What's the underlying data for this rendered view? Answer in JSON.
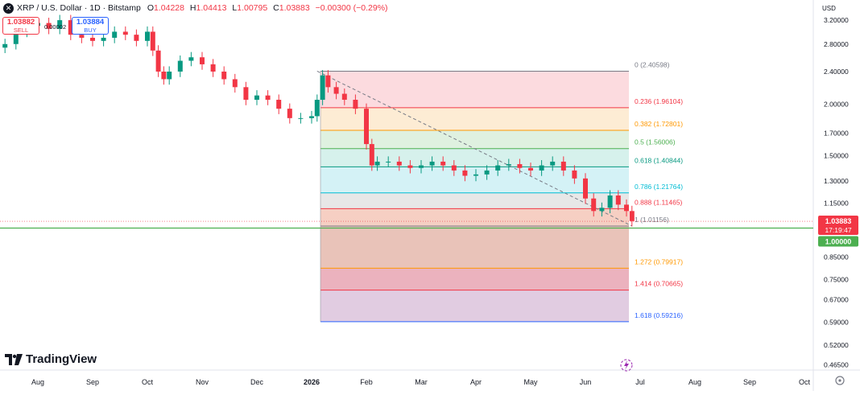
{
  "header": {
    "title": "XRP / U.S. Dollar · 1D · Bitstamp",
    "ohlc": [
      {
        "k": "O",
        "v": "1.04228"
      },
      {
        "k": "H",
        "v": "1.04413"
      },
      {
        "k": "L",
        "v": "1.00795"
      },
      {
        "k": "C",
        "v": "1.03883"
      }
    ],
    "change": "−0.00300 (−0.29%)",
    "symbol_icon": "x-icon"
  },
  "trade": {
    "sell_price": "1.03882",
    "sell_label": "SELL",
    "buy_price": "1.03884",
    "buy_label": "BUY",
    "spread": "0.00002"
  },
  "currency_label": "USD",
  "logo_text": "TradingView",
  "price_axis": {
    "ticks": [
      {
        "label": "3.20000",
        "v": 3.2
      },
      {
        "label": "2.80000",
        "v": 2.8
      },
      {
        "label": "2.40000",
        "v": 2.4
      },
      {
        "label": "2.00000",
        "v": 2.0
      },
      {
        "label": "1.70000",
        "v": 1.7
      },
      {
        "label": "1.50000",
        "v": 1.5
      },
      {
        "label": "1.30000",
        "v": 1.3
      },
      {
        "label": "1.15000",
        "v": 1.15
      },
      {
        "label": "0.85000",
        "v": 0.85
      },
      {
        "label": "0.75000",
        "v": 0.75
      },
      {
        "label": "0.67000",
        "v": 0.67
      },
      {
        "label": "0.59000",
        "v": 0.59
      },
      {
        "label": "0.52000",
        "v": 0.52
      },
      {
        "label": "0.46500",
        "v": 0.465
      }
    ],
    "last_price": "1.03883",
    "countdown": "17:19:47",
    "last_value": 1.03883,
    "level_label": "1.00000",
    "level_value": 1.0
  },
  "time_axis": {
    "labels": [
      {
        "label": "Aug",
        "t": 0
      },
      {
        "label": "Sep",
        "t": 1
      },
      {
        "label": "Oct",
        "t": 2
      },
      {
        "label": "Nov",
        "t": 3
      },
      {
        "label": "Dec",
        "t": 4
      },
      {
        "label": "2026",
        "t": 5
      },
      {
        "label": "Feb",
        "t": 6
      },
      {
        "label": "Mar",
        "t": 7
      },
      {
        "label": "Apr",
        "t": 8
      },
      {
        "label": "May",
        "t": 9
      },
      {
        "label": "Jun",
        "t": 10
      },
      {
        "label": "Jul",
        "t": 11
      },
      {
        "label": "Aug",
        "t": 12
      },
      {
        "label": "Sep",
        "t": 13
      },
      {
        "label": "Oct",
        "t": 14
      }
    ]
  },
  "chart_data": {
    "type": "candlestick",
    "y_scale": "log",
    "ylim": [
      0.44,
      3.4
    ],
    "x_unit": "months since Aug 2025",
    "series": [
      {
        "t": -0.6,
        "c": 2.8
      },
      {
        "t": -0.4,
        "c": 3.0
      },
      {
        "t": -0.2,
        "c": 3.1
      },
      {
        "t": 0.0,
        "c": 3.15
      },
      {
        "t": 0.2,
        "c": 3.05
      },
      {
        "t": 0.4,
        "c": 3.2
      },
      {
        "t": 0.6,
        "c": 2.95
      },
      {
        "t": 0.8,
        "c": 2.9
      },
      {
        "t": 1.0,
        "c": 2.85
      },
      {
        "t": 1.2,
        "c": 2.9
      },
      {
        "t": 1.4,
        "c": 3.0
      },
      {
        "t": 1.6,
        "c": 2.95
      },
      {
        "t": 1.8,
        "c": 2.85
      },
      {
        "t": 2.0,
        "c": 3.0
      },
      {
        "t": 2.1,
        "c": 2.7
      },
      {
        "t": 2.2,
        "c": 2.4
      },
      {
        "t": 2.3,
        "c": 2.3
      },
      {
        "t": 2.4,
        "c": 2.4
      },
      {
        "t": 2.6,
        "c": 2.55
      },
      {
        "t": 2.8,
        "c": 2.6
      },
      {
        "t": 3.0,
        "c": 2.5
      },
      {
        "t": 3.2,
        "c": 2.4
      },
      {
        "t": 3.4,
        "c": 2.3
      },
      {
        "t": 3.6,
        "c": 2.2
      },
      {
        "t": 3.8,
        "c": 2.05
      },
      {
        "t": 4.0,
        "c": 2.1
      },
      {
        "t": 4.2,
        "c": 2.05
      },
      {
        "t": 4.4,
        "c": 1.95
      },
      {
        "t": 4.6,
        "c": 1.85
      },
      {
        "t": 4.8,
        "c": 1.85
      },
      {
        "t": 5.0,
        "c": 1.87
      },
      {
        "t": 5.1,
        "c": 2.05
      },
      {
        "t": 5.2,
        "c": 2.35
      },
      {
        "t": 5.3,
        "c": 2.2
      },
      {
        "t": 5.45,
        "c": 2.12
      },
      {
        "t": 5.6,
        "c": 2.05
      },
      {
        "t": 5.8,
        "c": 1.95
      },
      {
        "t": 6.0,
        "c": 1.6
      },
      {
        "t": 6.1,
        "c": 1.42
      },
      {
        "t": 6.2,
        "c": 1.45
      },
      {
        "t": 6.4,
        "c": 1.45
      },
      {
        "t": 6.6,
        "c": 1.42
      },
      {
        "t": 6.8,
        "c": 1.4
      },
      {
        "t": 7.0,
        "c": 1.42
      },
      {
        "t": 7.2,
        "c": 1.45
      },
      {
        "t": 7.4,
        "c": 1.42
      },
      {
        "t": 7.6,
        "c": 1.38
      },
      {
        "t": 7.8,
        "c": 1.34
      },
      {
        "t": 8.0,
        "c": 1.35
      },
      {
        "t": 8.2,
        "c": 1.38
      },
      {
        "t": 8.4,
        "c": 1.42
      },
      {
        "t": 8.6,
        "c": 1.43
      },
      {
        "t": 8.8,
        "c": 1.4
      },
      {
        "t": 9.0,
        "c": 1.38
      },
      {
        "t": 9.2,
        "c": 1.42
      },
      {
        "t": 9.4,
        "c": 1.45
      },
      {
        "t": 9.6,
        "c": 1.38
      },
      {
        "t": 9.8,
        "c": 1.32
      },
      {
        "t": 10.0,
        "c": 1.18
      },
      {
        "t": 10.15,
        "c": 1.1
      },
      {
        "t": 10.3,
        "c": 1.12
      },
      {
        "t": 10.45,
        "c": 1.2
      },
      {
        "t": 10.6,
        "c": 1.14
      },
      {
        "t": 10.75,
        "c": 1.1
      },
      {
        "t": 10.85,
        "c": 1.04
      }
    ],
    "fibonacci": {
      "start": {
        "t": 5.1,
        "price": 2.40598
      },
      "end": {
        "t": 10.85,
        "price": 1.01156
      },
      "levels": [
        {
          "ratio": "0",
          "label": "0 (2.40598)",
          "price": 2.40598,
          "color": "#787b86",
          "fill": "#ffffff"
        },
        {
          "ratio": "0.236",
          "label": "0.236 (1.96104)",
          "price": 1.96104,
          "color": "#f23645",
          "fill": "#fcd5d9"
        },
        {
          "ratio": "0.382",
          "label": "0.382 (1.72801)",
          "price": 1.72801,
          "color": "#ff9800",
          "fill": "#fde9cc"
        },
        {
          "ratio": "0.5",
          "label": "0.5 (1.56006)",
          "price": 1.56006,
          "color": "#4caf50",
          "fill": "#d9eedb"
        },
        {
          "ratio": "0.618",
          "label": "0.618 (1.40844)",
          "price": 1.40844,
          "color": "#089981",
          "fill": "#cfeee9"
        },
        {
          "ratio": "0.786",
          "label": "0.786 (1.21764)",
          "price": 1.21764,
          "color": "#00bcd4",
          "fill": "#ccf0f5"
        },
        {
          "ratio": "0.888",
          "label": "0.888 (1.11465)",
          "price": 1.11465,
          "color": "#f23645",
          "fill": "#e3e3e3"
        },
        {
          "ratio": "1",
          "label": "1 (1.01156)",
          "price": 1.01156,
          "color": "#787b86",
          "fill": "#f5c7b8"
        },
        {
          "ratio": "1.272",
          "label": "1.272 (0.79917)",
          "price": 0.79917,
          "color": "#ff9800",
          "fill": "#e5b8ad"
        },
        {
          "ratio": "1.414",
          "label": "1.414 (0.70665)",
          "price": 0.70665,
          "color": "#f23645",
          "fill": "#e7a5b3"
        },
        {
          "ratio": "1.618",
          "label": "1.618 (0.59216)",
          "price": 0.59216,
          "color": "#2962ff",
          "fill": "#dcc3dc"
        }
      ]
    },
    "colors": {
      "up": "#089981",
      "down": "#f23645",
      "level_line": "#4caf50"
    }
  }
}
